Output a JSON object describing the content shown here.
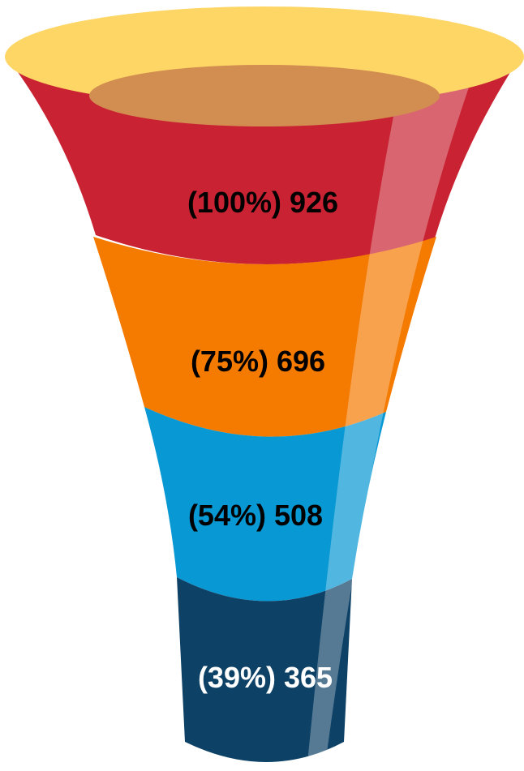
{
  "chart_data": {
    "type": "funnel",
    "title": "",
    "stages": [
      {
        "percent": 100,
        "value": 926,
        "label": "(100%) 926",
        "color": "#C92333",
        "text_color": "#000000"
      },
      {
        "percent": 75,
        "value": 696,
        "label": "(75%) 696",
        "color": "#F57A00",
        "text_color": "#000000"
      },
      {
        "percent": 54,
        "value": 508,
        "label": "(54%) 508",
        "color": "#0898D3",
        "text_color": "#000000"
      },
      {
        "percent": 39,
        "value": 365,
        "label": "(39%) 365",
        "color": "#0D4166",
        "text_color": "#FFFFFF"
      }
    ],
    "rim_color": "#FDD666",
    "inner_color": "#D28D50",
    "highlight_color": "#FFFFFF"
  }
}
